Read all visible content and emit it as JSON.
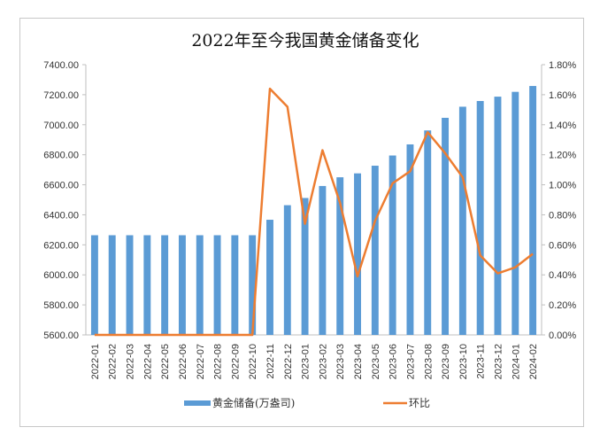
{
  "chart_data": {
    "type": "bar+line",
    "title": "2022年至今我国黄金储备变化",
    "categories": [
      "2022-01",
      "2022-02",
      "2022-03",
      "2022-04",
      "2022-05",
      "2022-06",
      "2022-07",
      "2022-08",
      "2022-09",
      "2022-10",
      "2022-11",
      "2022-12",
      "2023-01",
      "2023-02",
      "2023-03",
      "2023-04",
      "2023-05",
      "2023-06",
      "2023-07",
      "2023-08",
      "2023-09",
      "2023-10",
      "2023-11",
      "2023-12",
      "2024-01",
      "2024-02"
    ],
    "series": [
      {
        "name": "黄金储备(万盎司)",
        "type": "bar",
        "axis": "left",
        "color": "#5b9bd5",
        "values": [
          6264,
          6264,
          6264,
          6264,
          6264,
          6264,
          6264,
          6264,
          6264,
          6264,
          6367,
          6464,
          6512,
          6592,
          6650,
          6676,
          6727,
          6795,
          6869,
          6962,
          7046,
          7120,
          7158,
          7187,
          7219,
          7258
        ]
      },
      {
        "name": "环比",
        "type": "line",
        "axis": "right",
        "color": "#ed7d31",
        "values": [
          0,
          0,
          0,
          0,
          0,
          0,
          0,
          0,
          0,
          0,
          1.64,
          1.52,
          0.74,
          1.23,
          0.88,
          0.39,
          0.76,
          1.01,
          1.09,
          1.35,
          1.21,
          1.05,
          0.53,
          0.41,
          0.45,
          0.54
        ]
      }
    ],
    "ylim_left": [
      5600,
      7400
    ],
    "yticks_left": [
      "5600.00",
      "5800.00",
      "6000.00",
      "6200.00",
      "6400.00",
      "6600.00",
      "6800.00",
      "7000.00",
      "7200.00",
      "7400.00"
    ],
    "ylim_right": [
      0,
      1.8
    ],
    "yticks_right": [
      "0.00%",
      "0.20%",
      "0.40%",
      "0.60%",
      "0.80%",
      "1.00%",
      "1.20%",
      "1.40%",
      "1.60%",
      "1.80%"
    ],
    "grid": false,
    "legend": "bottom"
  }
}
